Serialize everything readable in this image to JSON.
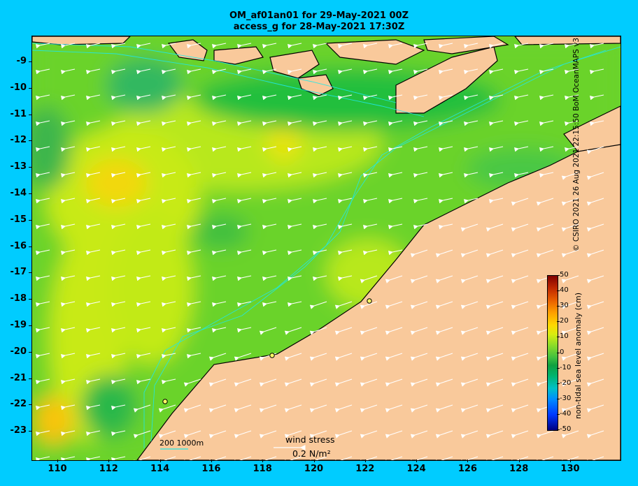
{
  "title_line1": "OM_af01an01 for 29-May-2021 00Z",
  "title_line2": "access_g for 28-May-2021 17:30Z",
  "lat_labels": [
    "-9",
    "-10",
    "-11",
    "-12",
    "-13",
    "-14",
    "-15",
    "-16",
    "-17",
    "-18",
    "-19",
    "-20",
    "-21",
    "-22",
    "-23"
  ],
  "lon_labels": [
    "110",
    "112",
    "114",
    "116",
    "118",
    "120",
    "122",
    "124",
    "126",
    "128",
    "130"
  ],
  "colorbar": {
    "title": "non-tidal sea level anomaly (cm)",
    "ticks": [
      "50",
      "40",
      "30",
      "20",
      "10",
      "0",
      "-10",
      "-20",
      "-30",
      "-40",
      "-50"
    ]
  },
  "wind_stress_label": "wind stress",
  "wind_stress_value": "0.2 N/m²",
  "bathymetry_label": "200  1000m",
  "credit": "© CSIRO 2021   26 Aug 2021 22:15:50 BoM OceanMAPS v3",
  "colors": {
    "background": "#00ccff",
    "land": "#f9c99b",
    "ocean_base": "#6bd32c"
  }
}
